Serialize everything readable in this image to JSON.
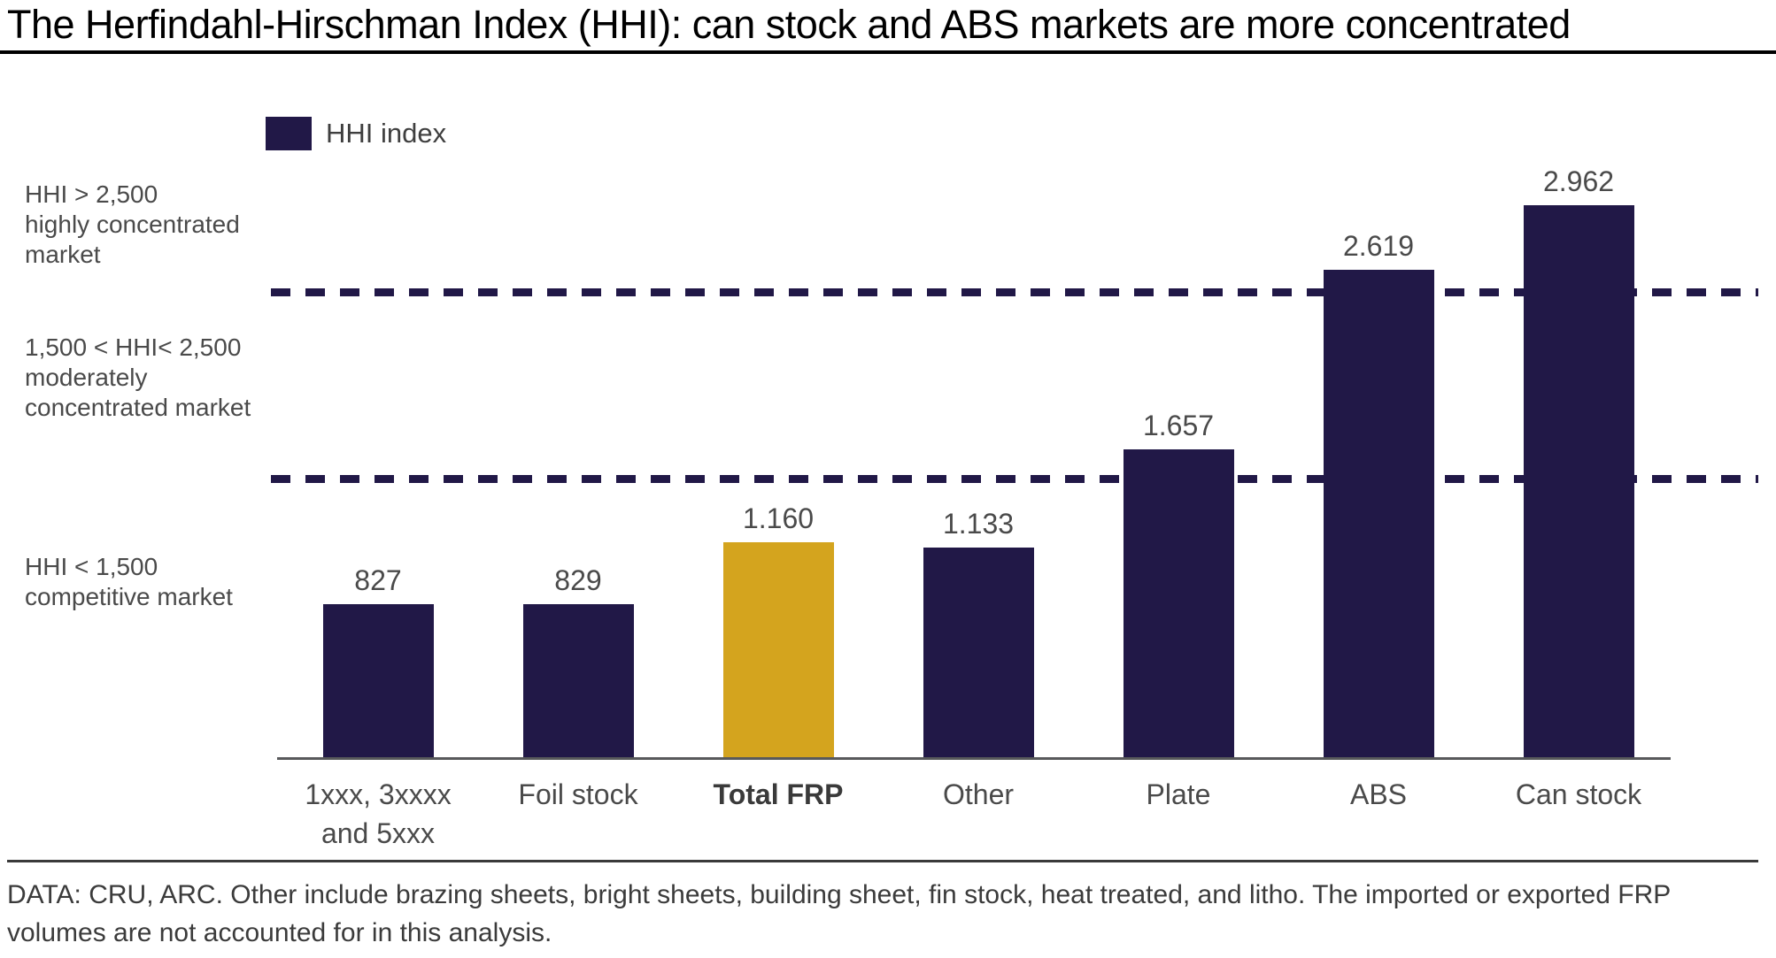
{
  "header": {
    "title": "The Herfindahl-Hirschman Index (HHI): can stock and ABS markets are more concentrated"
  },
  "legend": {
    "items": [
      {
        "label": "HHI index",
        "color": "#211847"
      }
    ]
  },
  "band_annotations": [
    {
      "text": "HHI > 2,500\nhighly concentrated\nmarket"
    },
    {
      "text": "1,500 < HHI< 2,500\nmoderately\nconcentrated market"
    },
    {
      "text": "HHI < 1,500\ncompetitive market"
    }
  ],
  "footnote": {
    "text": "DATA: CRU, ARC. Other include brazing sheets, bright sheets, building sheet, fin stock, heat treated, and litho. The imported or exported FRP volumes are not accounted for in this analysis."
  },
  "colors": {
    "bar": "#211847",
    "highlight": "#d4a41e",
    "axis": "#58595b",
    "dashed_line": "#211847"
  },
  "chart_data": {
    "type": "bar",
    "title": "The Herfindahl-Hirschman Index (HHI): can stock and ABS markets are more concentrated",
    "categories": [
      "1xxx, 3xxxx and 5xxx",
      "Foil stock",
      "Total FRP",
      "Other",
      "Plate",
      "ABS",
      "Can stock"
    ],
    "display_labels": [
      "1xxx, 3xxxx\nand 5xxx",
      "Foil stock",
      "Total FRP",
      "Other",
      "Plate",
      "ABS",
      "Can stock"
    ],
    "series": [
      {
        "name": "HHI index",
        "values": [
          827,
          829,
          1160,
          1133,
          1657,
          2619,
          2962
        ]
      }
    ],
    "value_labels": [
      "827",
      "829",
      "1.160",
      "1.133",
      "1.657",
      "2.619",
      "2.962"
    ],
    "highlighted_category": "Total FRP",
    "reference_lines": [
      {
        "value": 2500,
        "meaning": "HHI > 2,500 highly concentrated market",
        "style": "dashed"
      },
      {
        "value": 1500,
        "meaning": "HHI < 1,500 competitive market",
        "style": "dashed"
      }
    ],
    "xlabel": "",
    "ylabel": "",
    "ylim": [
      0,
      3300
    ],
    "grid": false,
    "legend_position": "top-left"
  }
}
